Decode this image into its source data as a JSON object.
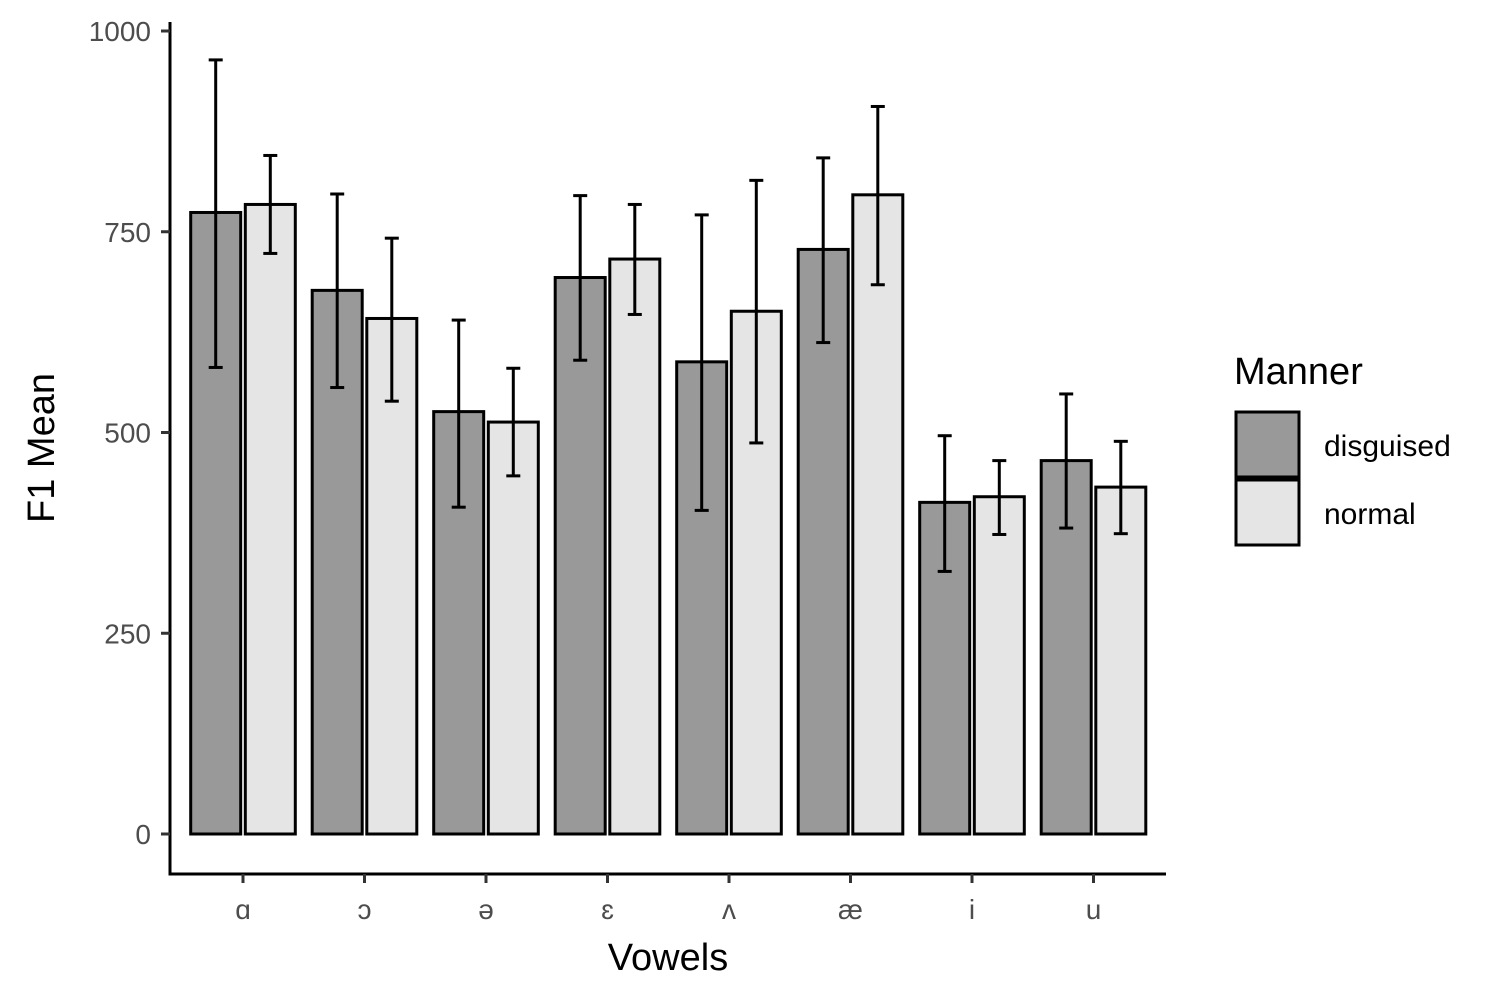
{
  "chart_data": {
    "type": "bar",
    "xlabel": "Vowels",
    "ylabel": "F1 Mean",
    "ylim": [
      -50,
      1010
    ],
    "yticks": [
      0,
      250,
      500,
      750,
      1000
    ],
    "ytick_labels": [
      "0",
      "250",
      "500",
      "750",
      "1000"
    ],
    "categories": [
      "ɑ",
      "ɔ",
      "ə",
      "ɛ",
      "ʌ",
      "æ",
      "i",
      "u"
    ],
    "legend": {
      "title": "Manner",
      "position": "right"
    },
    "grid": false,
    "series": [
      {
        "name": "disguised",
        "color": "#999999",
        "values": [
          774,
          677,
          526,
          693,
          588,
          728,
          413,
          465
        ],
        "err_low": [
          581,
          556,
          407,
          590,
          403,
          612,
          327,
          381
        ],
        "err_high": [
          964,
          797,
          640,
          795,
          771,
          842,
          496,
          548
        ]
      },
      {
        "name": "normal",
        "color": "#e5e5e5",
        "values": [
          784,
          642,
          513,
          716,
          651,
          796,
          420,
          432
        ],
        "err_low": [
          723,
          539,
          446,
          647,
          487,
          684,
          373,
          374
        ],
        "err_high": [
          845,
          742,
          580,
          784,
          814,
          906,
          465,
          489
        ]
      }
    ]
  }
}
